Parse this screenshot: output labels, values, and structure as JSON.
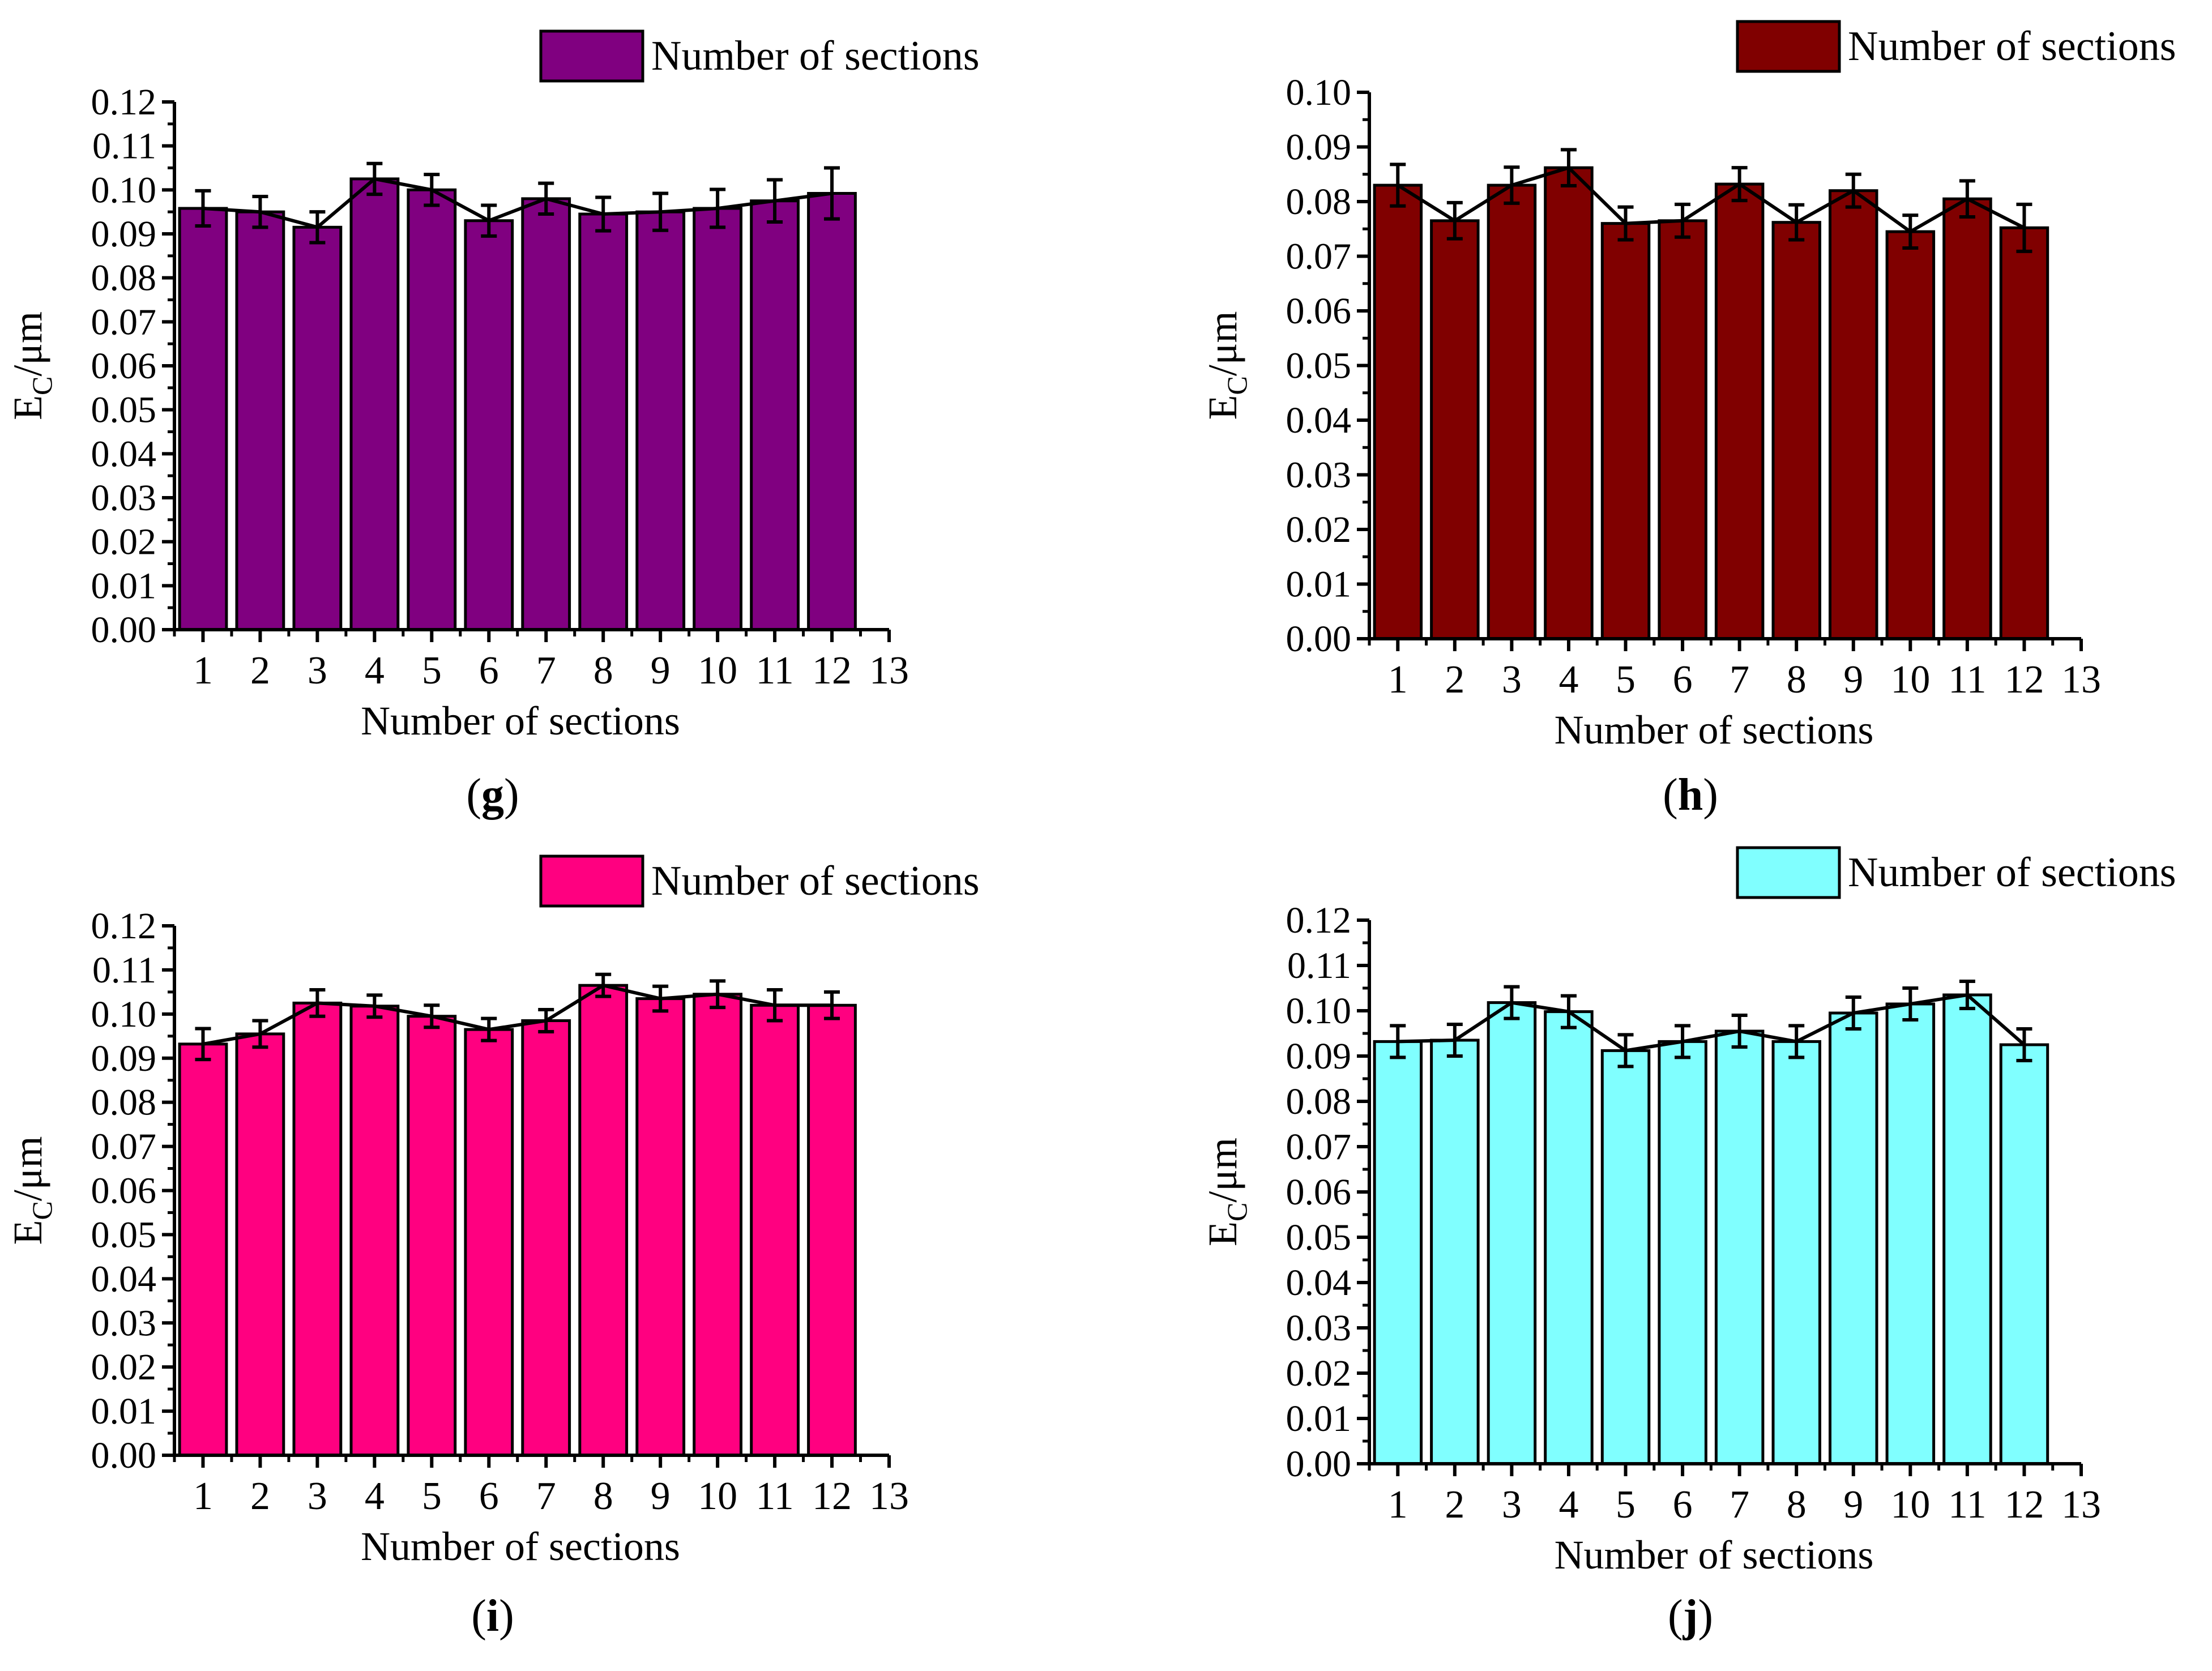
{
  "chart_data": [
    {
      "type": "bar",
      "panel": "g",
      "color": "#800080",
      "legend": "Number of sections",
      "xlabel": "Number of sections",
      "ylabel": {
        "base": "E",
        "sub": "C",
        "rest": "/μm"
      },
      "x_ticks": [
        "1",
        "2",
        "3",
        "4",
        "5",
        "6",
        "7",
        "8",
        "9",
        "10",
        "11",
        "12",
        "13"
      ],
      "y_ticks": [
        "0.00",
        "0.01",
        "0.02",
        "0.03",
        "0.04",
        "0.05",
        "0.06",
        "0.07",
        "0.08",
        "0.09",
        "0.10",
        "0.11",
        "0.12"
      ],
      "ylim": [
        0,
        0.12
      ],
      "xlim": [
        0.5,
        13
      ],
      "categories": [
        "1",
        "2",
        "3",
        "4",
        "5",
        "6",
        "7",
        "8",
        "9",
        "10",
        "11",
        "12"
      ],
      "values": [
        0.0958,
        0.095,
        0.0915,
        0.1025,
        0.1,
        0.093,
        0.098,
        0.0945,
        0.095,
        0.0958,
        0.0975,
        0.0992
      ],
      "errors": [
        0.004,
        0.0035,
        0.0035,
        0.0035,
        0.0035,
        0.0035,
        0.0035,
        0.0038,
        0.0042,
        0.0043,
        0.0048,
        0.0058
      ]
    },
    {
      "type": "bar",
      "panel": "h",
      "color": "#800000",
      "legend": "Number of sections",
      "xlabel": "Number of sections",
      "ylabel": {
        "base": "E",
        "sub": "C",
        "rest": "/μm"
      },
      "x_ticks": [
        "1",
        "2",
        "3",
        "4",
        "5",
        "6",
        "7",
        "8",
        "9",
        "10",
        "11",
        "12",
        "13"
      ],
      "y_ticks": [
        "0.00",
        "0.01",
        "0.02",
        "0.03",
        "0.04",
        "0.05",
        "0.06",
        "0.07",
        "0.08",
        "0.09",
        "0.10"
      ],
      "ylim": [
        0,
        0.1
      ],
      "xlim": [
        0.5,
        13
      ],
      "categories": [
        "1",
        "2",
        "3",
        "4",
        "5",
        "6",
        "7",
        "8",
        "9",
        "10",
        "11",
        "12"
      ],
      "values": [
        0.083,
        0.0765,
        0.083,
        0.0862,
        0.076,
        0.0765,
        0.0832,
        0.0762,
        0.082,
        0.0745,
        0.0805,
        0.0752
      ],
      "errors": [
        0.0038,
        0.0033,
        0.0033,
        0.0033,
        0.003,
        0.003,
        0.003,
        0.0032,
        0.003,
        0.003,
        0.0033,
        0.0043
      ]
    },
    {
      "type": "bar",
      "panel": "i",
      "color": "#ff0080",
      "legend": "Number of sections",
      "xlabel": "Number of sections",
      "ylabel": {
        "base": "E",
        "sub": "C",
        "rest": "/μm"
      },
      "x_ticks": [
        "1",
        "2",
        "3",
        "4",
        "5",
        "6",
        "7",
        "8",
        "9",
        "10",
        "11",
        "12",
        "13"
      ],
      "y_ticks": [
        "0.00",
        "0.01",
        "0.02",
        "0.03",
        "0.04",
        "0.05",
        "0.06",
        "0.07",
        "0.08",
        "0.09",
        "0.10",
        "0.11",
        "0.12"
      ],
      "ylim": [
        0,
        0.12
      ],
      "xlim": [
        0.5,
        13
      ],
      "categories": [
        "1",
        "2",
        "3",
        "4",
        "5",
        "6",
        "7",
        "8",
        "9",
        "10",
        "11",
        "12"
      ],
      "values": [
        0.0932,
        0.0955,
        0.1025,
        0.1018,
        0.0995,
        0.0965,
        0.0985,
        0.1065,
        0.1035,
        0.1045,
        0.102,
        0.102
      ],
      "errors": [
        0.0035,
        0.003,
        0.003,
        0.0025,
        0.0025,
        0.0025,
        0.0025,
        0.0025,
        0.0028,
        0.003,
        0.0035,
        0.003
      ]
    },
    {
      "type": "bar",
      "panel": "j",
      "color": "#80ffff",
      "legend": "Number of sections",
      "xlabel": "Number of sections",
      "ylabel": {
        "base": "E",
        "sub": "C",
        "rest": "/μm"
      },
      "x_ticks": [
        "1",
        "2",
        "3",
        "4",
        "5",
        "6",
        "7",
        "8",
        "9",
        "10",
        "11",
        "12",
        "13"
      ],
      "y_ticks": [
        "0.00",
        "0.01",
        "0.02",
        "0.03",
        "0.04",
        "0.05",
        "0.06",
        "0.07",
        "0.08",
        "0.09",
        "0.10",
        "0.11",
        "0.12"
      ],
      "ylim": [
        0,
        0.12
      ],
      "xlim": [
        0.5,
        13
      ],
      "categories": [
        "1",
        "2",
        "3",
        "4",
        "5",
        "6",
        "7",
        "8",
        "9",
        "10",
        "11",
        "12"
      ],
      "values": [
        0.0932,
        0.0935,
        0.1018,
        0.0998,
        0.0912,
        0.0932,
        0.0955,
        0.0932,
        0.0995,
        0.1015,
        0.1035,
        0.0925
      ],
      "errors": [
        0.0035,
        0.0035,
        0.0035,
        0.0035,
        0.0035,
        0.0035,
        0.0035,
        0.0035,
        0.0035,
        0.0035,
        0.003,
        0.0035
      ]
    }
  ]
}
